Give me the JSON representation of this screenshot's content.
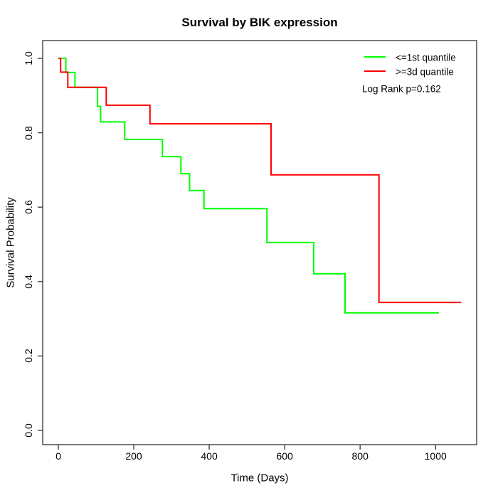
{
  "title": "Survival by BIK expression",
  "axis_color": "#404040",
  "chart_data": {
    "type": "line",
    "subtype": "kaplan-meier-step-curves",
    "title": "Survival by BIK expression",
    "xlabel": "Time (Days)",
    "ylabel": "Survival Probability",
    "xlim": [
      -41,
      1109
    ],
    "ylim": [
      -0.038,
      1.048
    ],
    "grid": false,
    "xticks": {
      "values": [
        0,
        200,
        400,
        600,
        800,
        1000
      ],
      "labels": [
        "0",
        "200",
        "400",
        "600",
        "800",
        "1000"
      ]
    },
    "yticks": {
      "values": [
        0.0,
        0.2,
        0.4,
        0.6,
        0.8,
        1.0
      ],
      "labels": [
        "0.0",
        "0.2",
        "0.4",
        "0.6",
        "0.8",
        "1.0"
      ]
    },
    "legend": {
      "position": "top-right",
      "entries": [
        {
          "label": "<=1st quantile",
          "color": "#00ff00"
        },
        {
          "label": ">=3d quantile",
          "color": "#ff0000"
        }
      ]
    },
    "annotation": "Log Rank p=0.162",
    "series": [
      {
        "name": "<=1st quantile",
        "color": "#00ff00",
        "start": [
          0,
          1.0
        ],
        "steps": [
          [
            20,
            0.962
          ],
          [
            44,
            0.922
          ],
          [
            104,
            0.871
          ],
          [
            112,
            0.829
          ],
          [
            176,
            0.782
          ],
          [
            276,
            0.736
          ],
          [
            325,
            0.69
          ],
          [
            348,
            0.645
          ],
          [
            386,
            0.596
          ],
          [
            553,
            0.505
          ],
          [
            677,
            0.421
          ],
          [
            760,
            0.316
          ]
        ],
        "end_day": 1009
      },
      {
        "name": ">=3d quantile",
        "color": "#ff0000",
        "start": [
          0,
          1.0
        ],
        "steps": [
          [
            6,
            0.963
          ],
          [
            25,
            0.922
          ],
          [
            127,
            0.874
          ],
          [
            243,
            0.824
          ],
          [
            564,
            0.687
          ],
          [
            850,
            0.344
          ]
        ],
        "end_day": 1068
      }
    ]
  }
}
